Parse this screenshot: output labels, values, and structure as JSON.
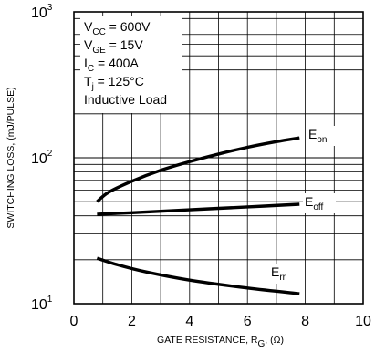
{
  "colors": {
    "background": "#ffffff",
    "ink": "#000000"
  },
  "chart_data": {
    "type": "line",
    "x_scale": "linear",
    "y_scale": "log",
    "xlim": [
      0,
      10
    ],
    "ylim": [
      10,
      1000
    ],
    "grid": true,
    "x_ticks": [
      0,
      2,
      4,
      6,
      8,
      10
    ],
    "x_tick_labels": [
      "0",
      "2",
      "4",
      "6",
      "8",
      "10"
    ],
    "y_ticks": [
      {
        "value": 10,
        "base": "10",
        "exp": "1"
      },
      {
        "value": 100,
        "base": "10",
        "exp": "2"
      },
      {
        "value": 1000,
        "base": "10",
        "exp": "3"
      }
    ],
    "xlabel": {
      "main": "GATE RESISTANCE, R",
      "sub": "G",
      "tail": ", (Ω)"
    },
    "ylabel": "SWITCHING LOSS, (mJ/PULSE)",
    "conditions": [
      {
        "main": "V",
        "sub": "CC",
        "tail": " = 600V"
      },
      {
        "main": "V",
        "sub": "GE",
        "tail": " = 15V"
      },
      {
        "main": "I",
        "sub": "C",
        "tail": " = 400A"
      },
      {
        "main": "T",
        "sub": "j",
        "tail": " = 125°C"
      },
      {
        "main": "Inductive Load",
        "sub": "",
        "tail": ""
      }
    ],
    "series": [
      {
        "name": "E_on",
        "label_main": "E",
        "label_sub": "on",
        "x": [
          0.8,
          1.2,
          2,
          3,
          4,
          5,
          6,
          7,
          7.8
        ],
        "y": [
          50,
          58,
          69,
          82,
          94,
          106,
          118,
          129,
          137
        ]
      },
      {
        "name": "E_off",
        "label_main": "E",
        "label_sub": "off",
        "x": [
          0.8,
          2,
          4,
          6,
          7.8
        ],
        "y": [
          41,
          42,
          44,
          46,
          48
        ]
      },
      {
        "name": "E_rr",
        "label_main": "E",
        "label_sub": "rr",
        "x": [
          0.8,
          1.5,
          2.5,
          4,
          6,
          7.8
        ],
        "y": [
          20.5,
          18.5,
          16.5,
          14.5,
          12.8,
          11.7
        ]
      }
    ]
  }
}
